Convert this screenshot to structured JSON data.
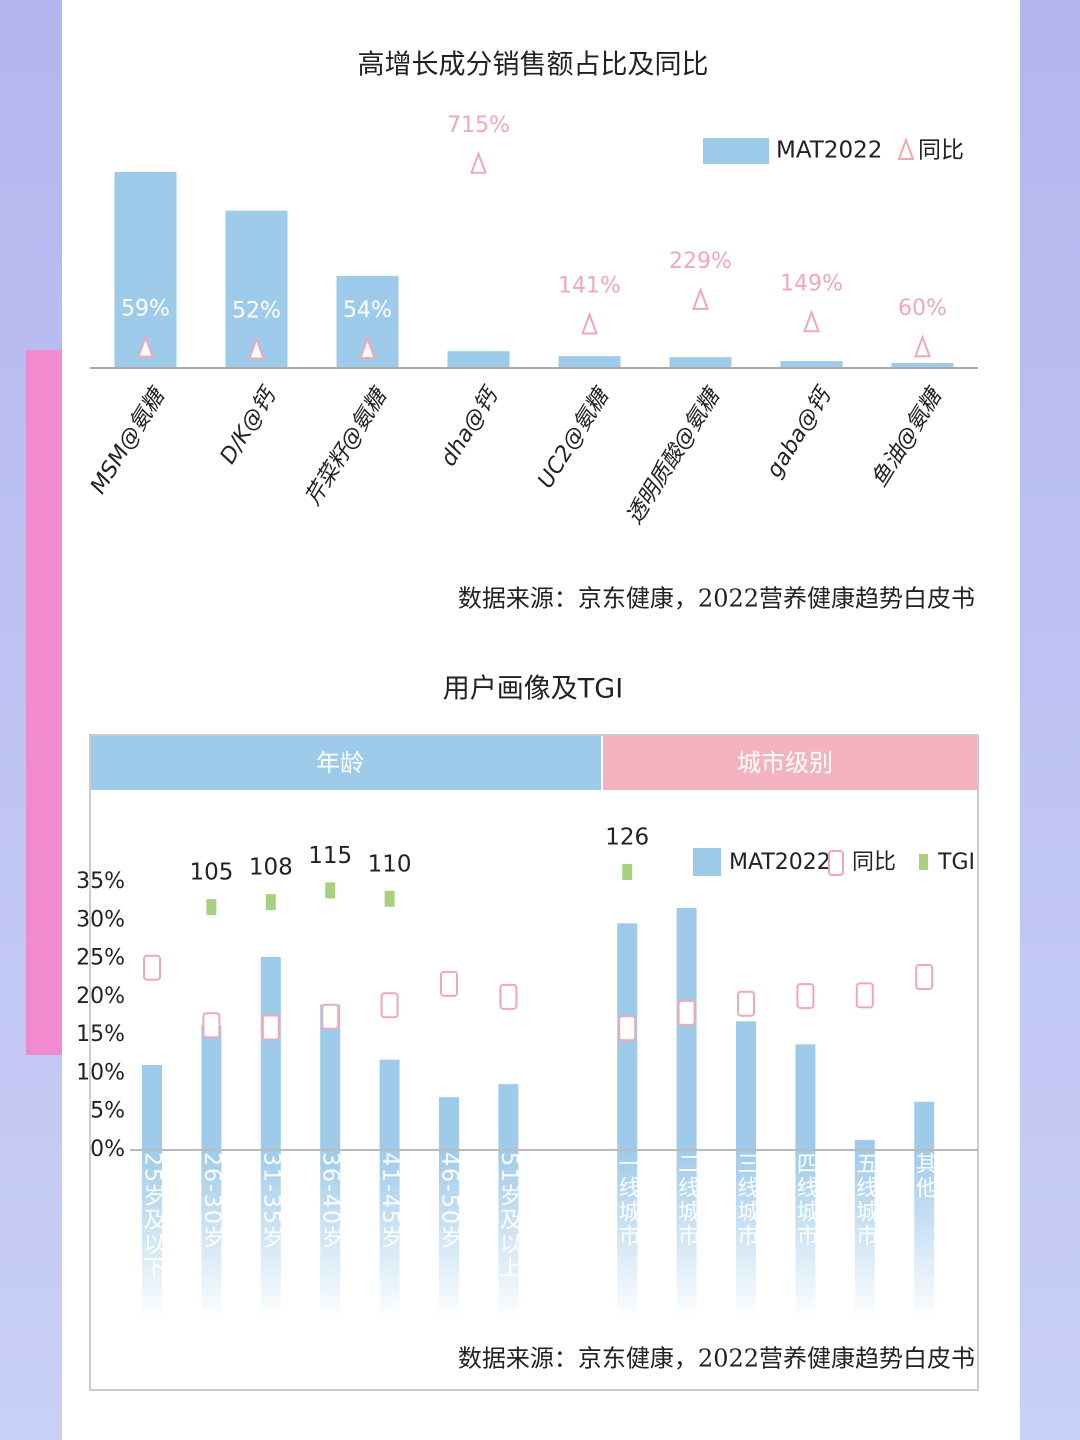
{
  "chart_data": [
    {
      "type": "bar",
      "title": "高增长成分销售额占比及同比",
      "categories": [
        "MSM@氨糖",
        "D/K@钙",
        "芹菜籽@氨糖",
        "dha@钙",
        "UC2@氨糖",
        "透明质酸@氨糖",
        "gaba@钙",
        "鱼油@氨糖"
      ],
      "series": [
        {
          "name": "MAT2022",
          "color": "#9fcbea",
          "values": [
            198,
            159,
            93,
            17,
            12,
            11,
            7,
            5
          ]
        },
        {
          "name": "同比",
          "color": "#f0a8b4",
          "axis": "y2",
          "values": [
            59,
            52,
            54,
            715,
            141,
            229,
            149,
            60
          ],
          "value_labels": [
            "59%",
            "52%",
            "54%",
            "715%",
            "141%",
            "229%",
            "149%",
            "60%"
          ]
        }
      ],
      "ylim": [
        0,
        200
      ],
      "y2lim": [
        0,
        1300
      ],
      "source": "数据来源：京东健康，2022营养健康趋势白皮书"
    },
    {
      "type": "bar",
      "title": "用户画像及TGI",
      "headers": [
        "年龄",
        "城市级别"
      ],
      "categories": [
        "25岁及以下",
        "26-30岁",
        "31-35岁",
        "36-40岁",
        "41-45岁",
        "46-50岁",
        "51岁及以上",
        null,
        "一线城市",
        "二线城市",
        "三线城市",
        "四线城市",
        "五线城市",
        "其他"
      ],
      "series": [
        {
          "name": "MAT2022",
          "color": "#9fcbea",
          "values": [
            11.1,
            16.3,
            25.2,
            19,
            11.8,
            6.9,
            8.6,
            null,
            29.6,
            31.6,
            16.8,
            13.8,
            1.3,
            6.3
          ]
        },
        {
          "name": "同比",
          "color": "#f0a8b4",
          "values": [
            23.8,
            16.3,
            16,
            17.4,
            18.9,
            21.7,
            20,
            null,
            15.9,
            17.9,
            19.1,
            20.1,
            20.2,
            22.6
          ]
        },
        {
          "name": "TGI",
          "color": "#a8d080",
          "axis": "y2",
          "values": [
            null,
            105,
            108,
            115,
            110,
            null,
            null,
            null,
            126,
            null,
            null,
            null,
            null,
            null
          ]
        }
      ],
      "ylim": [
        0,
        35
      ],
      "yticks": [
        {
          "value": 0,
          "label": "0%"
        },
        {
          "value": 5,
          "label": "5%"
        },
        {
          "value": 10,
          "label": "10%"
        },
        {
          "value": 15,
          "label": "15%"
        },
        {
          "value": 20,
          "label": "20%"
        },
        {
          "value": 25,
          "label": "25%"
        },
        {
          "value": 30,
          "label": "30%"
        },
        {
          "value": 35,
          "label": "35%"
        }
      ],
      "y2lim": [
        -40,
        160
      ],
      "source": "数据来源：京东健康，2022营养健康趋势白皮书"
    }
  ]
}
